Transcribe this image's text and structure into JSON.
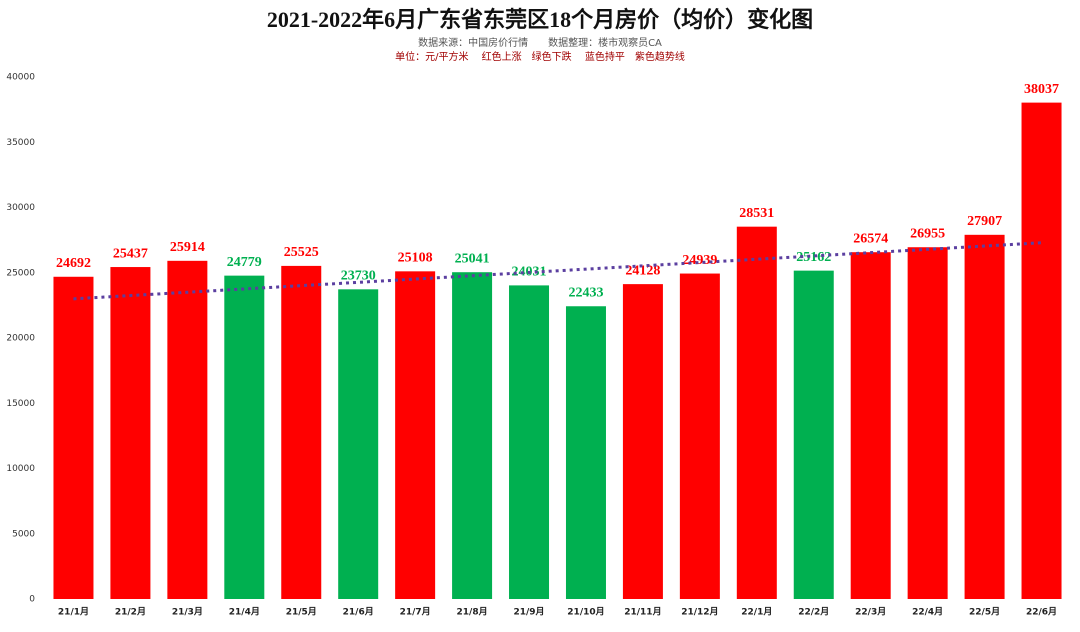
{
  "chart_data": {
    "type": "bar",
    "title": "2021-2022年6月广东省东莞区18个月房价（均价）变化图",
    "subtitle": "数据来源：中国房价行情　　数据整理：楼市观察员CA",
    "note": "单位：元/平方米　 红色上涨　绿色下跌　 蓝色持平　紫色趋势线",
    "categories": [
      "21/1月",
      "21/2月",
      "21/3月",
      "21/4月",
      "21/5月",
      "21/6月",
      "21/7月",
      "21/8月",
      "21/9月",
      "21/10月",
      "21/11月",
      "21/12月",
      "22/1月",
      "22/2月",
      "22/3月",
      "22/4月",
      "22/5月",
      "22/6月"
    ],
    "values": [
      24692,
      25437,
      25914,
      24779,
      25525,
      23730,
      25108,
      25041,
      24031,
      22433,
      24128,
      24939,
      28531,
      25162,
      26574,
      26955,
      27907,
      38037
    ],
    "colors": [
      "#ff0000",
      "#ff0000",
      "#ff0000",
      "#00b050",
      "#ff0000",
      "#00b050",
      "#ff0000",
      "#00b050",
      "#00b050",
      "#00b050",
      "#ff0000",
      "#ff0000",
      "#ff0000",
      "#00b050",
      "#ff0000",
      "#ff0000",
      "#ff0000",
      "#ff0000"
    ],
    "trend": {
      "color": "#5b3fa0",
      "start": 23000,
      "end": 27300
    },
    "ylim": [
      0,
      40000
    ],
    "yticks": [
      0,
      5000,
      10000,
      15000,
      20000,
      25000,
      30000,
      35000,
      40000
    ],
    "grid": false
  }
}
